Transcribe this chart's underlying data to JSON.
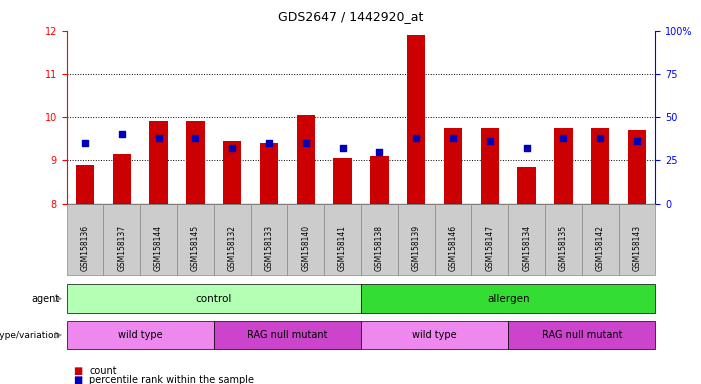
{
  "title": "GDS2647 / 1442920_at",
  "samples": [
    "GSM158136",
    "GSM158137",
    "GSM158144",
    "GSM158145",
    "GSM158132",
    "GSM158133",
    "GSM158140",
    "GSM158141",
    "GSM158138",
    "GSM158139",
    "GSM158146",
    "GSM158147",
    "GSM158134",
    "GSM158135",
    "GSM158142",
    "GSM158143"
  ],
  "bar_values": [
    8.9,
    9.15,
    9.9,
    9.9,
    9.45,
    9.4,
    10.05,
    9.05,
    9.1,
    11.9,
    9.75,
    9.75,
    8.85,
    9.75,
    9.75,
    9.7
  ],
  "dot_percentile": [
    35,
    40,
    38,
    38,
    32,
    35,
    35,
    32,
    30,
    38,
    38,
    36,
    32,
    38,
    38,
    36
  ],
  "bar_color": "#cc0000",
  "dot_color": "#0000bb",
  "ylim_left": [
    8,
    12
  ],
  "ylim_right": [
    0,
    100
  ],
  "yticks_left": [
    8,
    9,
    10,
    11,
    12
  ],
  "yticks_right": [
    0,
    25,
    50,
    75,
    100
  ],
  "ytick_labels_right": [
    "0",
    "25",
    "50",
    "75",
    "100%"
  ],
  "bar_baseline": 8,
  "agent_control_color": "#b3ffb3",
  "agent_allergen_color": "#33dd33",
  "geno_wt_color": "#ee88ee",
  "geno_rag_color": "#cc44cc",
  "tick_bg_color": "#cccccc",
  "legend_count": "count",
  "legend_pct": "percentile rank within the sample",
  "agent_label": "agent",
  "geno_label": "genotype/variation"
}
